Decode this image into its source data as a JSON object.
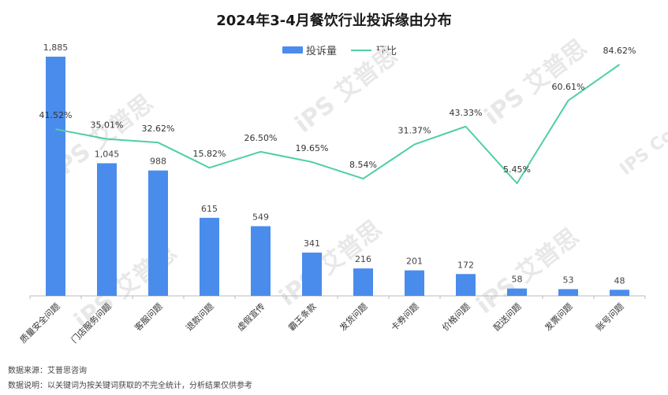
{
  "chart_data": {
    "type": "bar",
    "title": "2024年3-4月餐饮行业投诉缘由分布",
    "categories": [
      "质量安全问题",
      "门店服务问题",
      "客服问题",
      "退款问题",
      "虚假宣传",
      "霸王条款",
      "发货问题",
      "卡券问题",
      "价格问题",
      "配送问题",
      "发票问题",
      "账号问题"
    ],
    "series": [
      {
        "name": "投诉量",
        "kind": "bar",
        "values": [
          1885,
          1045,
          988,
          615,
          549,
          341,
          216,
          201,
          172,
          58,
          53,
          48
        ],
        "labels": [
          "1,885",
          "1,045",
          "988",
          "615",
          "549",
          "341",
          "216",
          "201",
          "172",
          "58",
          "53",
          "48"
        ]
      },
      {
        "name": "环比",
        "kind": "line",
        "values": [
          41.52,
          35.01,
          32.62,
          15.82,
          26.5,
          19.65,
          8.54,
          31.37,
          43.33,
          5.45,
          60.61,
          84.62
        ],
        "labels": [
          "41.52%",
          "35.01%",
          "32.62%",
          "15.82%",
          "26.50%",
          "19.65%",
          "8.54%",
          "31.37%",
          "43.33%",
          "5.45%",
          "60.61%",
          "84.62%"
        ]
      }
    ],
    "bar_ylim": [
      0,
      1885
    ],
    "line_ylim": [
      5.45,
      84.62
    ],
    "legend": "top-center",
    "grid": false,
    "colors": {
      "bar": "#4a8cec",
      "line": "#4fcfa4",
      "axis": "#bbbbbb"
    }
  },
  "footnotes": {
    "source": "数据来源：艾普思咨询",
    "note": "数据说明：以关键词为按关键词获取的不完全统计，分析结果仅供参考"
  },
  "watermark": {
    "text": "iPS 艾普思",
    "sub": "IPS Consulting"
  }
}
